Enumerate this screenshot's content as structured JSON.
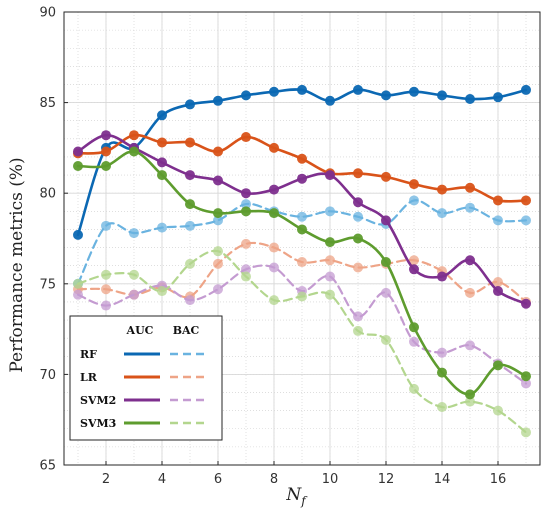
{
  "chart_data": {
    "type": "line",
    "xlabel": "N",
    "xlabel_sub": "f",
    "ylabel": "Performance metrics (%)",
    "xlim": [
      0.5,
      17.5
    ],
    "ylim": [
      65,
      90
    ],
    "xticks": [
      2,
      4,
      6,
      8,
      10,
      12,
      14,
      16
    ],
    "yticks": [
      65,
      70,
      75,
      80,
      85,
      90
    ],
    "grid": true,
    "legend": {
      "placement": "bottom-left",
      "headers": [
        "AUC",
        "BAC"
      ],
      "rows": [
        "RF",
        "LR",
        "SVM2",
        "SVM3"
      ]
    },
    "x": [
      1,
      2,
      3,
      4,
      5,
      6,
      7,
      8,
      9,
      10,
      11,
      12,
      13,
      14,
      15,
      16,
      17
    ],
    "series": [
      {
        "name": "RF",
        "metric": "AUC",
        "color": "#0b68b3",
        "values": [
          77.7,
          82.5,
          82.5,
          84.3,
          84.9,
          85.1,
          85.4,
          85.6,
          85.7,
          85.1,
          85.7,
          85.4,
          85.6,
          85.4,
          85.2,
          85.3,
          85.7
        ]
      },
      {
        "name": "RF",
        "metric": "BAC",
        "color": "#6ab3e0",
        "values": [
          75.0,
          78.2,
          77.8,
          78.1,
          78.2,
          78.5,
          79.4,
          79.0,
          78.7,
          79.0,
          78.7,
          78.3,
          79.6,
          78.9,
          79.2,
          78.5,
          78.5
        ]
      },
      {
        "name": "LR",
        "metric": "AUC",
        "color": "#d95319",
        "values": [
          82.2,
          82.3,
          83.2,
          82.8,
          82.8,
          82.3,
          83.1,
          82.5,
          81.9,
          81.1,
          81.1,
          80.9,
          80.5,
          80.2,
          80.3,
          79.6,
          79.6
        ]
      },
      {
        "name": "LR",
        "metric": "BAC",
        "color": "#eea487",
        "values": [
          74.7,
          74.7,
          74.4,
          74.8,
          74.3,
          76.1,
          77.2,
          77.0,
          76.2,
          76.3,
          75.9,
          76.1,
          76.3,
          75.7,
          74.5,
          75.1,
          74.0
        ]
      },
      {
        "name": "SVM2",
        "metric": "AUC",
        "color": "#7e2f8e",
        "values": [
          82.3,
          83.2,
          82.5,
          81.7,
          81.0,
          80.7,
          80.0,
          80.2,
          80.8,
          81.0,
          79.5,
          78.5,
          75.8,
          75.4,
          76.3,
          74.6,
          73.9
        ]
      },
      {
        "name": "SVM2",
        "metric": "BAC",
        "color": "#c49bd1",
        "values": [
          74.4,
          73.8,
          74.4,
          74.9,
          74.1,
          74.7,
          75.8,
          75.9,
          74.6,
          75.4,
          73.2,
          74.5,
          71.8,
          71.2,
          71.6,
          70.6,
          69.5
        ]
      },
      {
        "name": "SVM3",
        "metric": "AUC",
        "color": "#5e9c2e",
        "values": [
          81.5,
          81.5,
          82.3,
          81.0,
          79.4,
          78.9,
          79.0,
          78.9,
          78.0,
          77.3,
          77.5,
          76.2,
          72.6,
          70.1,
          68.9,
          70.5,
          69.9
        ]
      },
      {
        "name": "SVM3",
        "metric": "BAC",
        "color": "#b3d68e",
        "values": [
          75.0,
          75.5,
          75.5,
          74.6,
          76.1,
          76.8,
          75.4,
          74.1,
          74.3,
          74.4,
          72.4,
          71.9,
          69.2,
          68.2,
          68.5,
          68.0,
          66.8
        ]
      }
    ]
  }
}
